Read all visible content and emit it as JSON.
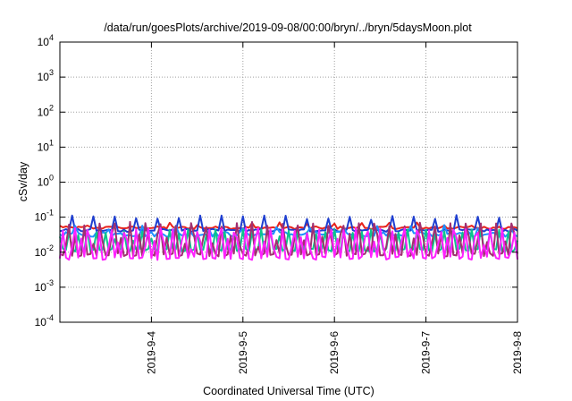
{
  "chart_data": {
    "type": "line",
    "title": "/data/run/goesPlots/archive/2019-09-08/00:00/bryn/../bryn/5daysMoon.plot",
    "xlabel": "Coordinated Universal Time (UTC)",
    "ylabel": "cSv/day",
    "yscale": "log",
    "ylim": [
      0.0001,
      10000
    ],
    "y_ticks": [
      {
        "base": "10",
        "exp": "-4",
        "value": 0.0001
      },
      {
        "base": "10",
        "exp": "-3",
        "value": 0.001
      },
      {
        "base": "10",
        "exp": "-2",
        "value": 0.01
      },
      {
        "base": "10",
        "exp": "-1",
        "value": 0.1
      },
      {
        "base": "10",
        "exp": "0",
        "value": 1
      },
      {
        "base": "10",
        "exp": "1",
        "value": 10
      },
      {
        "base": "10",
        "exp": "2",
        "value": 100
      },
      {
        "base": "10",
        "exp": "3",
        "value": 1000
      },
      {
        "base": "10",
        "exp": "4",
        "value": 10000
      }
    ],
    "xlim": [
      "2019-09-03T00:00",
      "2019-09-08T00:00"
    ],
    "x_ticks": [
      {
        "label": "2019-9-4",
        "value": "2019-09-04"
      },
      {
        "label": "2019-9-5",
        "value": "2019-09-05"
      },
      {
        "label": "2019-9-6",
        "value": "2019-09-06"
      },
      {
        "label": "2019-9-7",
        "value": "2019-09-07"
      },
      {
        "label": "2019-9-8",
        "value": "2019-09-08"
      }
    ],
    "grid": true,
    "legend": "none",
    "series": [
      {
        "color": "#e8231c",
        "base": 0.05,
        "spread": 0.0045,
        "spike": 0.072,
        "spike_every": 9
      },
      {
        "color": "#1f3fd0",
        "base": 0.042,
        "spread": 0.004,
        "spike": 0.115,
        "spike_every": 7
      },
      {
        "color": "#1e90ff",
        "base": 0.033,
        "spread": 0.0055,
        "spike": 0.06,
        "spike_every": 11
      },
      {
        "color": "#0cc48c",
        "base": 0.0115,
        "spread": 0.0012,
        "spike": 0.045,
        "spike_every": 6
      },
      {
        "color": "#a03070",
        "base": 0.0085,
        "spread": 0.0009,
        "spike": 0.075,
        "spike_every": 5
      },
      {
        "color": "#ff20ff",
        "base": 0.0068,
        "spread": 0.0008,
        "spike": 0.05,
        "spike_every": 4
      }
    ]
  }
}
